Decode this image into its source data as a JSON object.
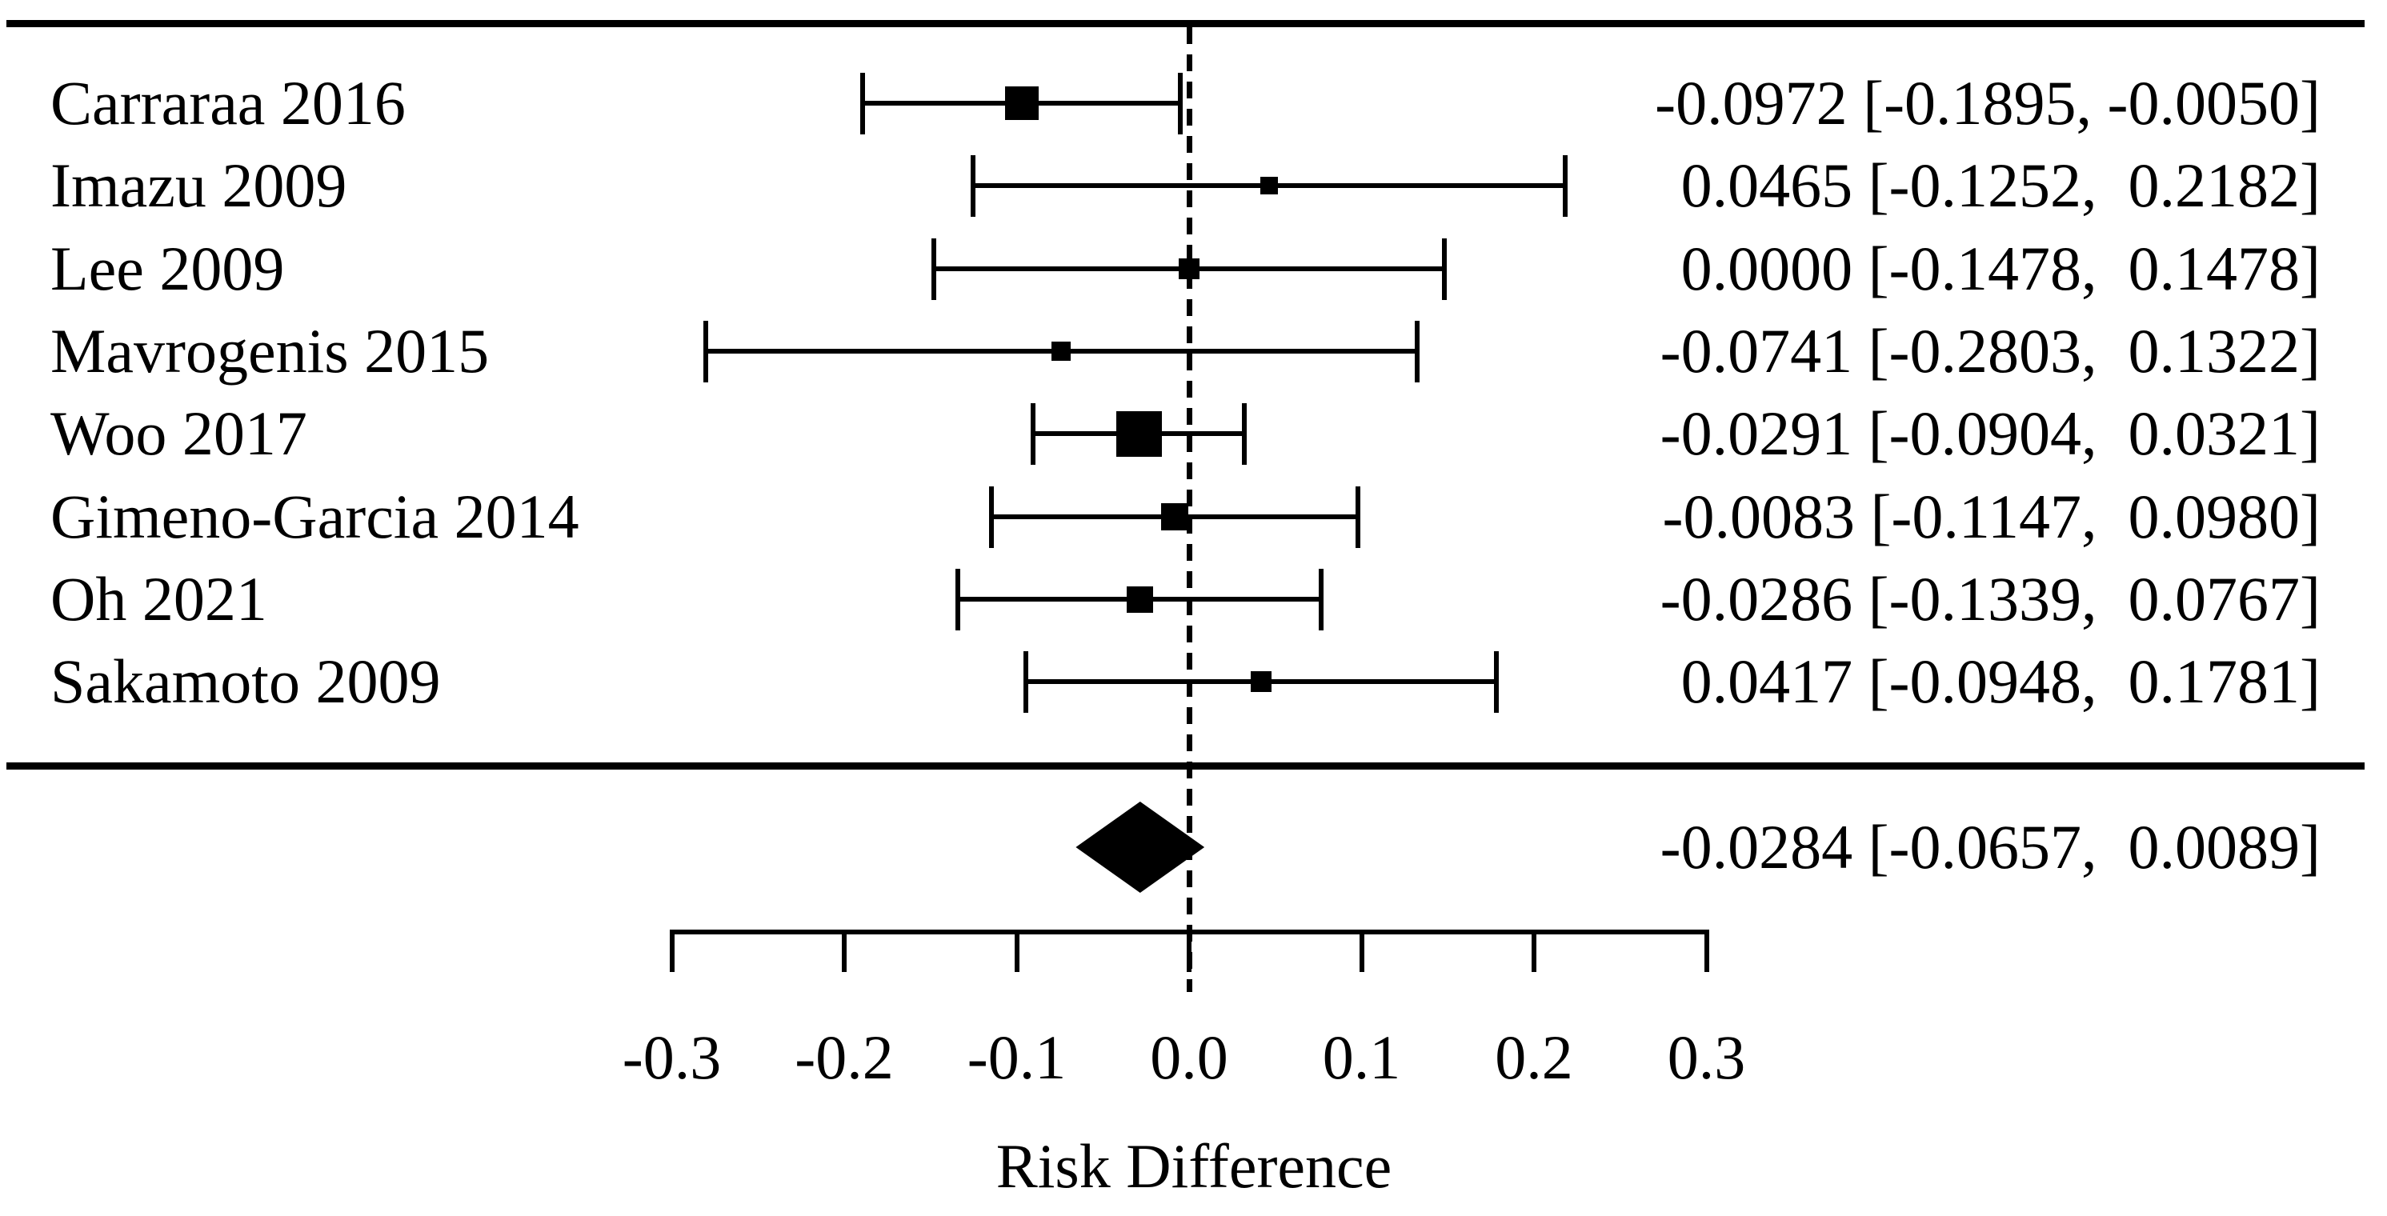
{
  "chart_data": {
    "type": "scatter",
    "subtype": "forest-plot",
    "title": "",
    "xlabel": "Risk Difference",
    "xlim": [
      -0.3,
      0.3
    ],
    "x_ticks": [
      -0.3,
      -0.2,
      -0.1,
      0.0,
      0.1,
      0.2,
      0.3
    ],
    "x_tick_labels": [
      "-0.3",
      "-0.2",
      "-0.1",
      "0.0",
      "0.1",
      "0.2",
      "0.3"
    ],
    "zero_reference_line": 0.0,
    "grid": "off",
    "studies": [
      {
        "label": "Carraraa 2016",
        "estimate": -0.0972,
        "ci_lower": -0.1895,
        "ci_upper": -0.005,
        "value_text": "-0.0972 [-0.1895, -0.0050]",
        "marker_px": 42
      },
      {
        "label": "Imazu 2009",
        "estimate": 0.0465,
        "ci_lower": -0.1252,
        "ci_upper": 0.2182,
        "value_text": "0.0465 [-0.1252,  0.2182]",
        "marker_px": 22
      },
      {
        "label": "Lee 2009",
        "estimate": 0.0,
        "ci_lower": -0.1478,
        "ci_upper": 0.1478,
        "value_text": "0.0000 [-0.1478,  0.1478]",
        "marker_px": 26
      },
      {
        "label": "Mavrogenis 2015",
        "estimate": -0.0741,
        "ci_lower": -0.2803,
        "ci_upper": 0.1322,
        "value_text": "-0.0741 [-0.2803,  0.1322]",
        "marker_px": 24
      },
      {
        "label": "Woo 2017",
        "estimate": -0.0291,
        "ci_lower": -0.0904,
        "ci_upper": 0.0321,
        "value_text": "-0.0291 [-0.0904,  0.0321]",
        "marker_px": 57
      },
      {
        "label": "Gimeno-Garcia 2014",
        "estimate": -0.0083,
        "ci_lower": -0.1147,
        "ci_upper": 0.098,
        "value_text": "-0.0083 [-0.1147,  0.0980]",
        "marker_px": 34
      },
      {
        "label": "Oh 2021",
        "estimate": -0.0286,
        "ci_lower": -0.1339,
        "ci_upper": 0.0767,
        "value_text": "-0.0286 [-0.1339,  0.0767]",
        "marker_px": 33
      },
      {
        "label": "Sakamoto 2009",
        "estimate": 0.0417,
        "ci_lower": -0.0948,
        "ci_upper": 0.1781,
        "value_text": "0.0417 [-0.0948,  0.1781]",
        "marker_px": 26
      }
    ],
    "summary": {
      "estimate": -0.0284,
      "ci_lower": -0.0657,
      "ci_upper": 0.0089,
      "value_text": "-0.0284 [-0.0657,  0.0089]"
    }
  },
  "colors": {
    "ink": "#000000",
    "background": "#ffffff"
  }
}
